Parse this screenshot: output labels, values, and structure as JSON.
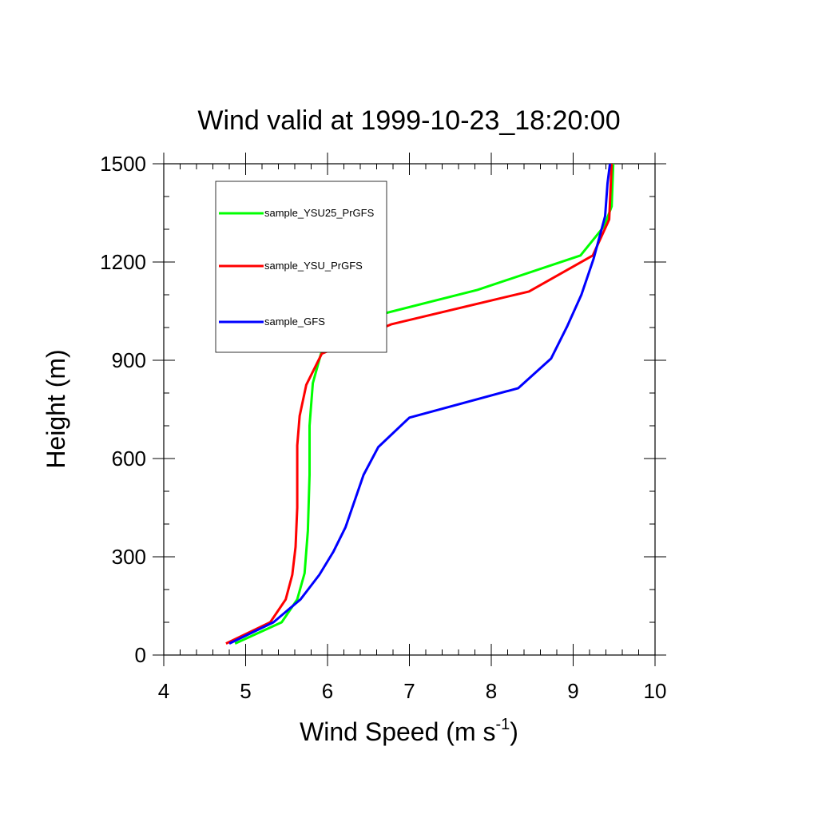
{
  "chart_data": {
    "type": "line",
    "title": "Wind valid at 1999-10-23_18:20:00",
    "xlabel_main": "Wind Speed (m s",
    "xlabel_sup": "-1",
    "xlabel_close": ")",
    "ylabel": "Height (m)",
    "xlim": [
      4,
      10
    ],
    "ylim": [
      0,
      1500
    ],
    "x_ticks": [
      4,
      5,
      6,
      7,
      8,
      9,
      10
    ],
    "y_ticks": [
      0,
      300,
      600,
      900,
      1200,
      1500
    ],
    "x_minor_step": 0.2,
    "y_minor_step": 100,
    "grid": false,
    "legend_position": "top-left",
    "series": [
      {
        "name": "sample_YSU25_PrGFS",
        "color": "#00ff00",
        "points": [
          [
            4.87,
            35
          ],
          [
            5.44,
            100
          ],
          [
            5.63,
            170
          ],
          [
            5.72,
            250
          ],
          [
            5.76,
            380
          ],
          [
            5.78,
            550
          ],
          [
            5.78,
            700
          ],
          [
            5.82,
            830
          ],
          [
            5.92,
            920
          ],
          [
            6.17,
            1010
          ],
          [
            7.83,
            1115
          ],
          [
            9.09,
            1220
          ],
          [
            9.38,
            1310
          ],
          [
            9.47,
            1370
          ],
          [
            9.49,
            1500
          ]
        ]
      },
      {
        "name": "sample_YSU_PrGFS",
        "color": "#ff0000",
        "points": [
          [
            4.76,
            35
          ],
          [
            5.3,
            100
          ],
          [
            5.49,
            170
          ],
          [
            5.57,
            245
          ],
          [
            5.61,
            330
          ],
          [
            5.63,
            450
          ],
          [
            5.63,
            640
          ],
          [
            5.66,
            730
          ],
          [
            5.74,
            825
          ],
          [
            5.93,
            920
          ],
          [
            6.78,
            1010
          ],
          [
            8.46,
            1110
          ],
          [
            9.24,
            1220
          ],
          [
            9.44,
            1330
          ],
          [
            9.47,
            1500
          ]
        ]
      },
      {
        "name": "sample_GFS",
        "color": "#0000ff",
        "points": [
          [
            4.8,
            35
          ],
          [
            5.34,
            100
          ],
          [
            5.67,
            170
          ],
          [
            5.9,
            245
          ],
          [
            6.07,
            315
          ],
          [
            6.22,
            390
          ],
          [
            6.44,
            550
          ],
          [
            6.62,
            635
          ],
          [
            7.0,
            725
          ],
          [
            8.33,
            815
          ],
          [
            8.73,
            905
          ],
          [
            8.93,
            1005
          ],
          [
            9.1,
            1100
          ],
          [
            9.25,
            1210
          ],
          [
            9.39,
            1340
          ],
          [
            9.42,
            1440
          ],
          [
            9.45,
            1500
          ]
        ]
      }
    ]
  }
}
